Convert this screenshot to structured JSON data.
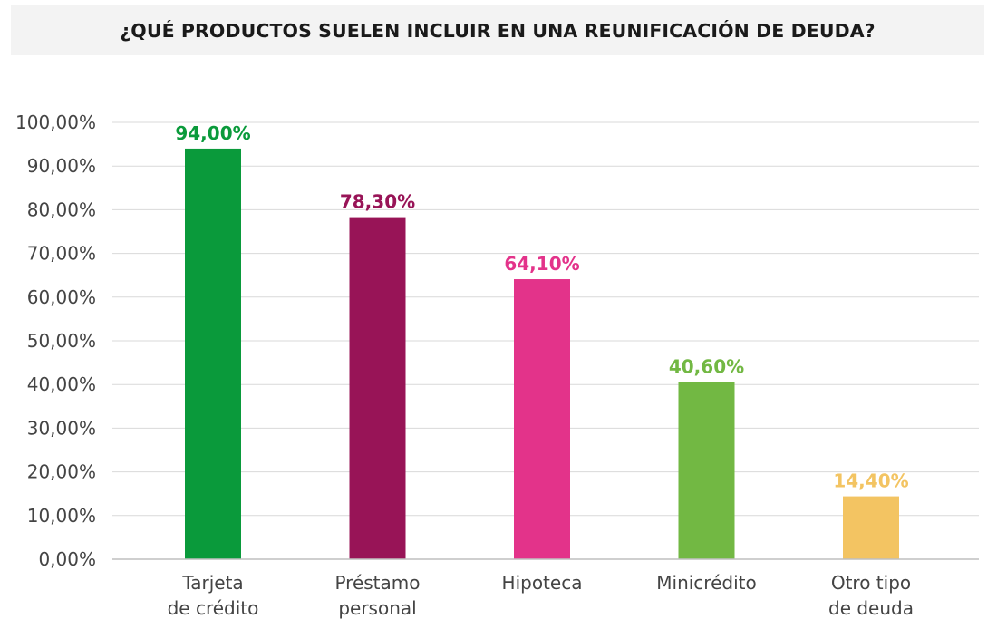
{
  "chart_data": {
    "type": "bar",
    "title": "¿QUÉ PRODUCTOS SUELEN INCLUIR EN UNA REUNIFICACIÓN DE DEUDA?",
    "categories": [
      [
        "Tarjeta",
        "de crédito"
      ],
      [
        "Préstamo",
        "personal"
      ],
      [
        "Hipoteca"
      ],
      [
        "Minicrédito"
      ],
      [
        "Otro tipo",
        "de deuda"
      ]
    ],
    "values": [
      94.0,
      78.3,
      64.1,
      40.6,
      14.4
    ],
    "value_labels": [
      "94,00%",
      "78,30%",
      "64,10%",
      "40,60%",
      "14,40%"
    ],
    "colors": [
      "#0a9a3b",
      "#981457",
      "#e3338a",
      "#72b843",
      "#f3c462"
    ],
    "ylim": [
      0,
      100
    ],
    "yticks": [
      0,
      10,
      20,
      30,
      40,
      50,
      60,
      70,
      80,
      90,
      100
    ],
    "ytick_labels": [
      "0,00%",
      "10,00%",
      "20,00%",
      "30,00%",
      "40,00%",
      "50,00%",
      "60,00%",
      "70,00%",
      "80,00%",
      "90,00%",
      "100,00%"
    ],
    "grid": true,
    "legend": "none",
    "xlabel": "",
    "ylabel": ""
  }
}
